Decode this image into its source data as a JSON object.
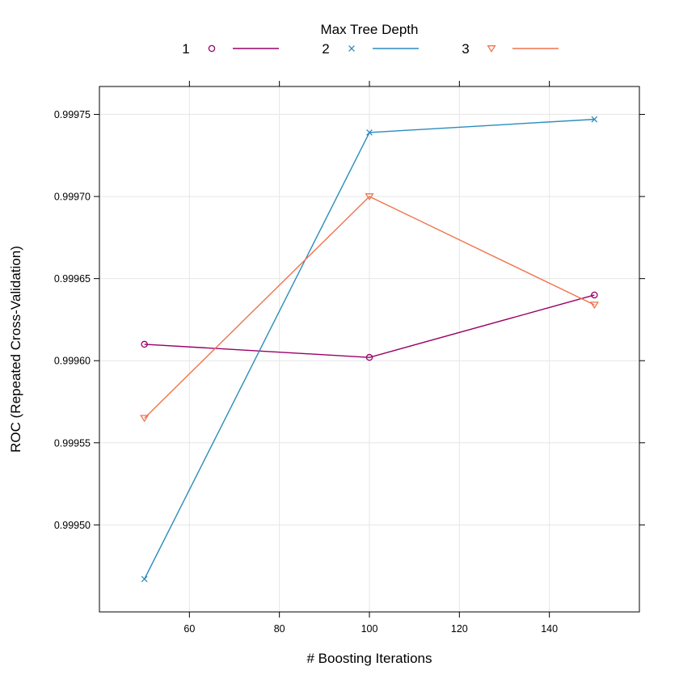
{
  "chart_data": {
    "type": "line",
    "title": "",
    "xlabel": "# Boosting Iterations",
    "ylabel": "ROC (Repeated Cross-Validation)",
    "xlim": [
      40,
      160
    ],
    "ylim": [
      0.999447,
      0.999767
    ],
    "x_ticks": [
      60,
      80,
      100,
      120,
      140
    ],
    "x_tick_labels": [
      "60",
      "80",
      "100",
      "120",
      "140"
    ],
    "y_ticks": [
      0.9995,
      0.99955,
      0.9996,
      0.99965,
      0.9997,
      0.99975
    ],
    "y_tick_labels": [
      "0.99950",
      "0.99955",
      "0.99960",
      "0.99965",
      "0.99970",
      "0.99975"
    ],
    "grid": true,
    "legend": {
      "title": "Max Tree Depth",
      "position": "top"
    },
    "x": [
      50,
      100,
      150
    ],
    "series": [
      {
        "name": "1",
        "values": [
          0.99961,
          0.999602,
          0.99964
        ],
        "color": "#990066",
        "marker": "circle"
      },
      {
        "name": "2",
        "values": [
          0.999467,
          0.999739,
          0.999747
        ],
        "color": "#2b8cbe",
        "marker": "cross"
      },
      {
        "name": "3",
        "values": [
          0.999565,
          0.9997,
          0.999634
        ],
        "color": "#f0744c",
        "marker": "triangle-down"
      }
    ]
  }
}
